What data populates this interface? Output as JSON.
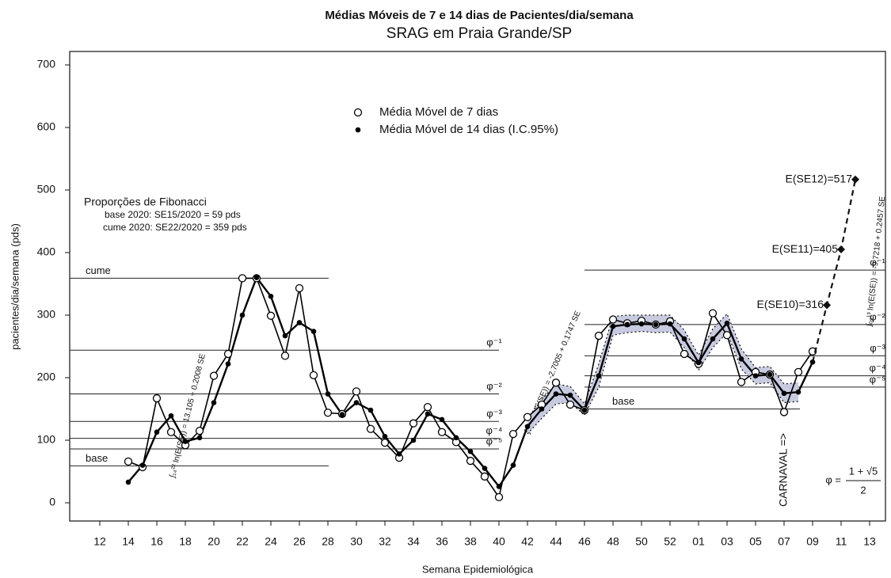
{
  "chart_data": {
    "type": "line",
    "title": "Médias Móveis de 7 e 14 dias de Pacientes/dia/semana",
    "subtitle": "SRAG em Praia Grande/SP",
    "x_label": "Semana Epidemiológica",
    "y_label": "pacientes/dia/semana (pds)",
    "categories": [
      null,
      "12",
      null,
      "14",
      null,
      "16",
      null,
      "18",
      null,
      "20",
      null,
      "22",
      null,
      "24",
      null,
      "26",
      null,
      "28",
      null,
      "30",
      null,
      "32",
      null,
      "34",
      null,
      "36",
      null,
      "38",
      null,
      "40",
      null,
      "42",
      null,
      "44",
      null,
      "46",
      null,
      "48",
      null,
      "50",
      null,
      "52",
      null,
      "01",
      null,
      "03",
      null,
      "05",
      null,
      "07",
      null,
      "09",
      null,
      "11",
      null,
      "13"
    ],
    "ylim": [
      0,
      700
    ],
    "yticks": [
      0,
      100,
      200,
      300,
      400,
      500,
      600,
      700
    ],
    "series": [
      {
        "name": "Média Móvel de 7 dias",
        "color": "#000000",
        "marker": "open-circle",
        "values": [
          null,
          null,
          null,
          66,
          57,
          167,
          113,
          92,
          115,
          203,
          238,
          359,
          359,
          299,
          235,
          343,
          204,
          144,
          142,
          178,
          118,
          96,
          72,
          127,
          153,
          113,
          97,
          67,
          42,
          9,
          110,
          137,
          157,
          192,
          157,
          148,
          267,
          293,
          287,
          291,
          285,
          290,
          238,
          222,
          303,
          268,
          193,
          209,
          205,
          145,
          209,
          242,
          null,
          null,
          null,
          null
        ]
      },
      {
        "name": "Média Móvel de 14 dias (I.C.95%)",
        "color": "#000000",
        "marker": "dot",
        "values": [
          null,
          null,
          null,
          33,
          60,
          113,
          139,
          98,
          104,
          160,
          222,
          300,
          360,
          330,
          267,
          288,
          274,
          174,
          141,
          160,
          148,
          106,
          78,
          100,
          142,
          133,
          104,
          82,
          55,
          26,
          60,
          122,
          150,
          174,
          172,
          148,
          203,
          282,
          285,
          286,
          285,
          286,
          262,
          224,
          262,
          287,
          230,
          203,
          205,
          175,
          177,
          225,
          null,
          null,
          null,
          null
        ]
      }
    ],
    "ci": {
      "color": "#c8cbe0",
      "lower": [
        null,
        null,
        null,
        null,
        null,
        null,
        null,
        null,
        null,
        null,
        null,
        null,
        null,
        null,
        null,
        null,
        null,
        null,
        null,
        null,
        null,
        null,
        null,
        null,
        null,
        null,
        null,
        null,
        null,
        null,
        null,
        110,
        135,
        158,
        160,
        140,
        185,
        268,
        272,
        274,
        272,
        273,
        248,
        212,
        248,
        272,
        214,
        190,
        192,
        160,
        162,
        null,
        null,
        null,
        null,
        null
      ],
      "upper": [
        null,
        null,
        null,
        null,
        null,
        null,
        null,
        null,
        null,
        null,
        null,
        null,
        null,
        null,
        null,
        null,
        null,
        null,
        null,
        null,
        null,
        null,
        null,
        null,
        null,
        null,
        null,
        null,
        null,
        null,
        null,
        135,
        165,
        190,
        186,
        158,
        222,
        298,
        300,
        300,
        300,
        300,
        276,
        236,
        278,
        302,
        246,
        216,
        218,
        190,
        192,
        null,
        null,
        null,
        null,
        null
      ]
    },
    "projection": {
      "values": [
        null,
        null,
        null,
        null,
        null,
        null,
        null,
        null,
        null,
        null,
        null,
        null,
        null,
        null,
        null,
        null,
        null,
        null,
        null,
        null,
        null,
        null,
        null,
        null,
        null,
        null,
        null,
        null,
        null,
        null,
        null,
        null,
        null,
        null,
        null,
        null,
        null,
        null,
        null,
        null,
        null,
        null,
        null,
        null,
        null,
        null,
        null,
        null,
        null,
        null,
        null,
        null,
        316,
        405,
        517,
        null
      ],
      "value_labels": [
        null,
        null,
        null,
        null,
        null,
        null,
        null,
        null,
        null,
        null,
        null,
        null,
        null,
        null,
        null,
        null,
        null,
        null,
        null,
        null,
        null,
        null,
        null,
        null,
        null,
        null,
        null,
        null,
        null,
        null,
        null,
        null,
        null,
        null,
        null,
        null,
        null,
        null,
        null,
        null,
        null,
        null,
        null,
        null,
        null,
        null,
        null,
        null,
        null,
        null,
        null,
        null,
        "E(SE10)=316",
        "E(SE11)=405",
        "E(SE12)=517",
        null
      ]
    },
    "levels_2020": [
      {
        "label": "cume",
        "value": 359
      },
      {
        "label": "φ⁻¹",
        "value": 244
      },
      {
        "label": "φ⁻²",
        "value": 174
      },
      {
        "label": "φ⁻³",
        "value": 130
      },
      {
        "label": "φ⁻⁴",
        "value": 103
      },
      {
        "label": "φ⁻⁵",
        "value": 86
      },
      {
        "label": "base",
        "value": 59
      }
    ],
    "levels_2021": [
      {
        "label": "φ⁻¹",
        "value": 372
      },
      {
        "label": "φ⁻²",
        "value": 285
      },
      {
        "label": "φ⁻³",
        "value": 235
      },
      {
        "label": "φ⁻⁴",
        "value": 203
      },
      {
        "label": "φ⁻⁵",
        "value": 185
      },
      {
        "label": "base",
        "value": 150
      }
    ],
    "fibonacci_note": [
      "Proporções de Fibonacci",
      "base 2020: SE15/2020 = 59 pds",
      "cume 2020: SE22/2020 = 359 pds"
    ],
    "fits": [
      "∫₁₄²² ln(E(SE)) = 13.105 + 0.2008 SE",
      "∫₄₀⁴⁶ ln(E(SE)) = -2.7005 + 0.1747 SE",
      "∫₀₉¹³ ln(E(SE)) = -9.7218 + 0.2457 SE"
    ],
    "event": "CARNAVAL =>",
    "golden_ratio": {
      "lhs": "φ =",
      "numerator": "1 + √5",
      "denominator": "2"
    }
  }
}
